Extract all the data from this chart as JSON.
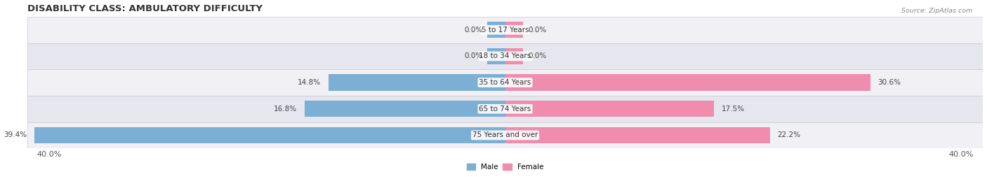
{
  "title": "DISABILITY CLASS: AMBULATORY DIFFICULTY",
  "source": "Source: ZipAtlas.com",
  "categories": [
    "5 to 17 Years",
    "18 to 34 Years",
    "35 to 64 Years",
    "65 to 74 Years",
    "75 Years and over"
  ],
  "male_values": [
    0.0,
    0.0,
    14.8,
    16.8,
    39.4
  ],
  "female_values": [
    0.0,
    0.0,
    30.6,
    17.5,
    22.2
  ],
  "male_color": "#7bafd4",
  "female_color": "#f08cae",
  "male_label": "Male",
  "female_label": "Female",
  "x_max": 40.0,
  "x_min": -40.0,
  "axis_label_left": "40.0%",
  "axis_label_right": "40.0%",
  "bar_height": 0.62,
  "row_colors": [
    "#f0f0f5",
    "#e6e6ef"
  ],
  "title_fontsize": 9.5,
  "label_fontsize": 7.5,
  "value_fontsize": 7.5,
  "tick_fontsize": 8,
  "zero_stub": 1.5
}
